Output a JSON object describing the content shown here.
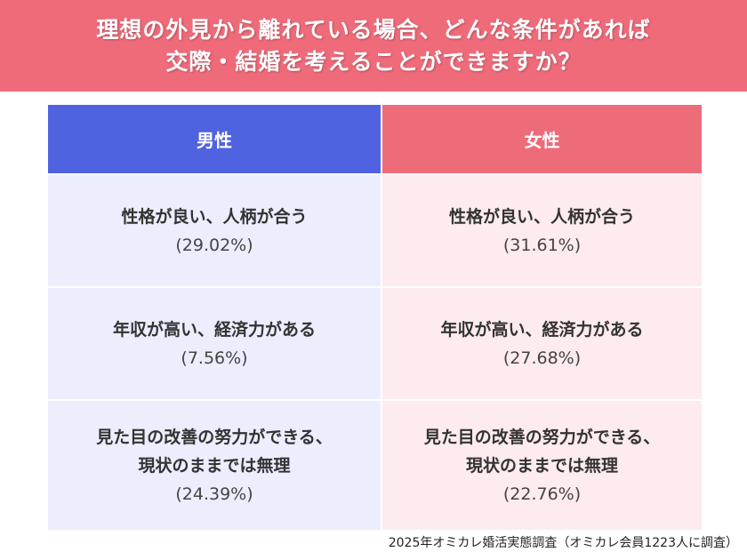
{
  "title": {
    "line1": "理想の外見から離れている場合、どんな条件があれば",
    "line2": "交際・結婚を考えることができますか？"
  },
  "colors": {
    "title_bg": "#ef6b7a",
    "male_header": "#4f63e0",
    "female_header": "#ee6b7a",
    "male_cell": "#ecedfd",
    "female_cell": "#fdebee"
  },
  "table": {
    "headers": {
      "male": "男性",
      "female": "女性"
    },
    "rows": [
      {
        "male": {
          "line1": "性格が良い、人柄が合う",
          "line2": "",
          "pct": "(29.02%)"
        },
        "female": {
          "line1": "性格が良い、人柄が合う",
          "line2": "",
          "pct": "(31.61%)"
        }
      },
      {
        "male": {
          "line1": "年収が高い、経済力がある",
          "line2": "",
          "pct": "(7.56%)"
        },
        "female": {
          "line1": "年収が高い、経済力がある",
          "line2": "",
          "pct": "(27.68%)"
        }
      },
      {
        "male": {
          "line1": "見た目の改善の努力ができる、",
          "line2": "現状のままでは無理",
          "pct": "(24.39%)"
        },
        "female": {
          "line1": "見た目の改善の努力ができる、",
          "line2": "現状のままでは無理",
          "pct": "(22.76%)"
        }
      }
    ]
  },
  "footer": {
    "source": "2025年オミカレ婚活実態調査（オミカレ会員1223人に調査）"
  }
}
